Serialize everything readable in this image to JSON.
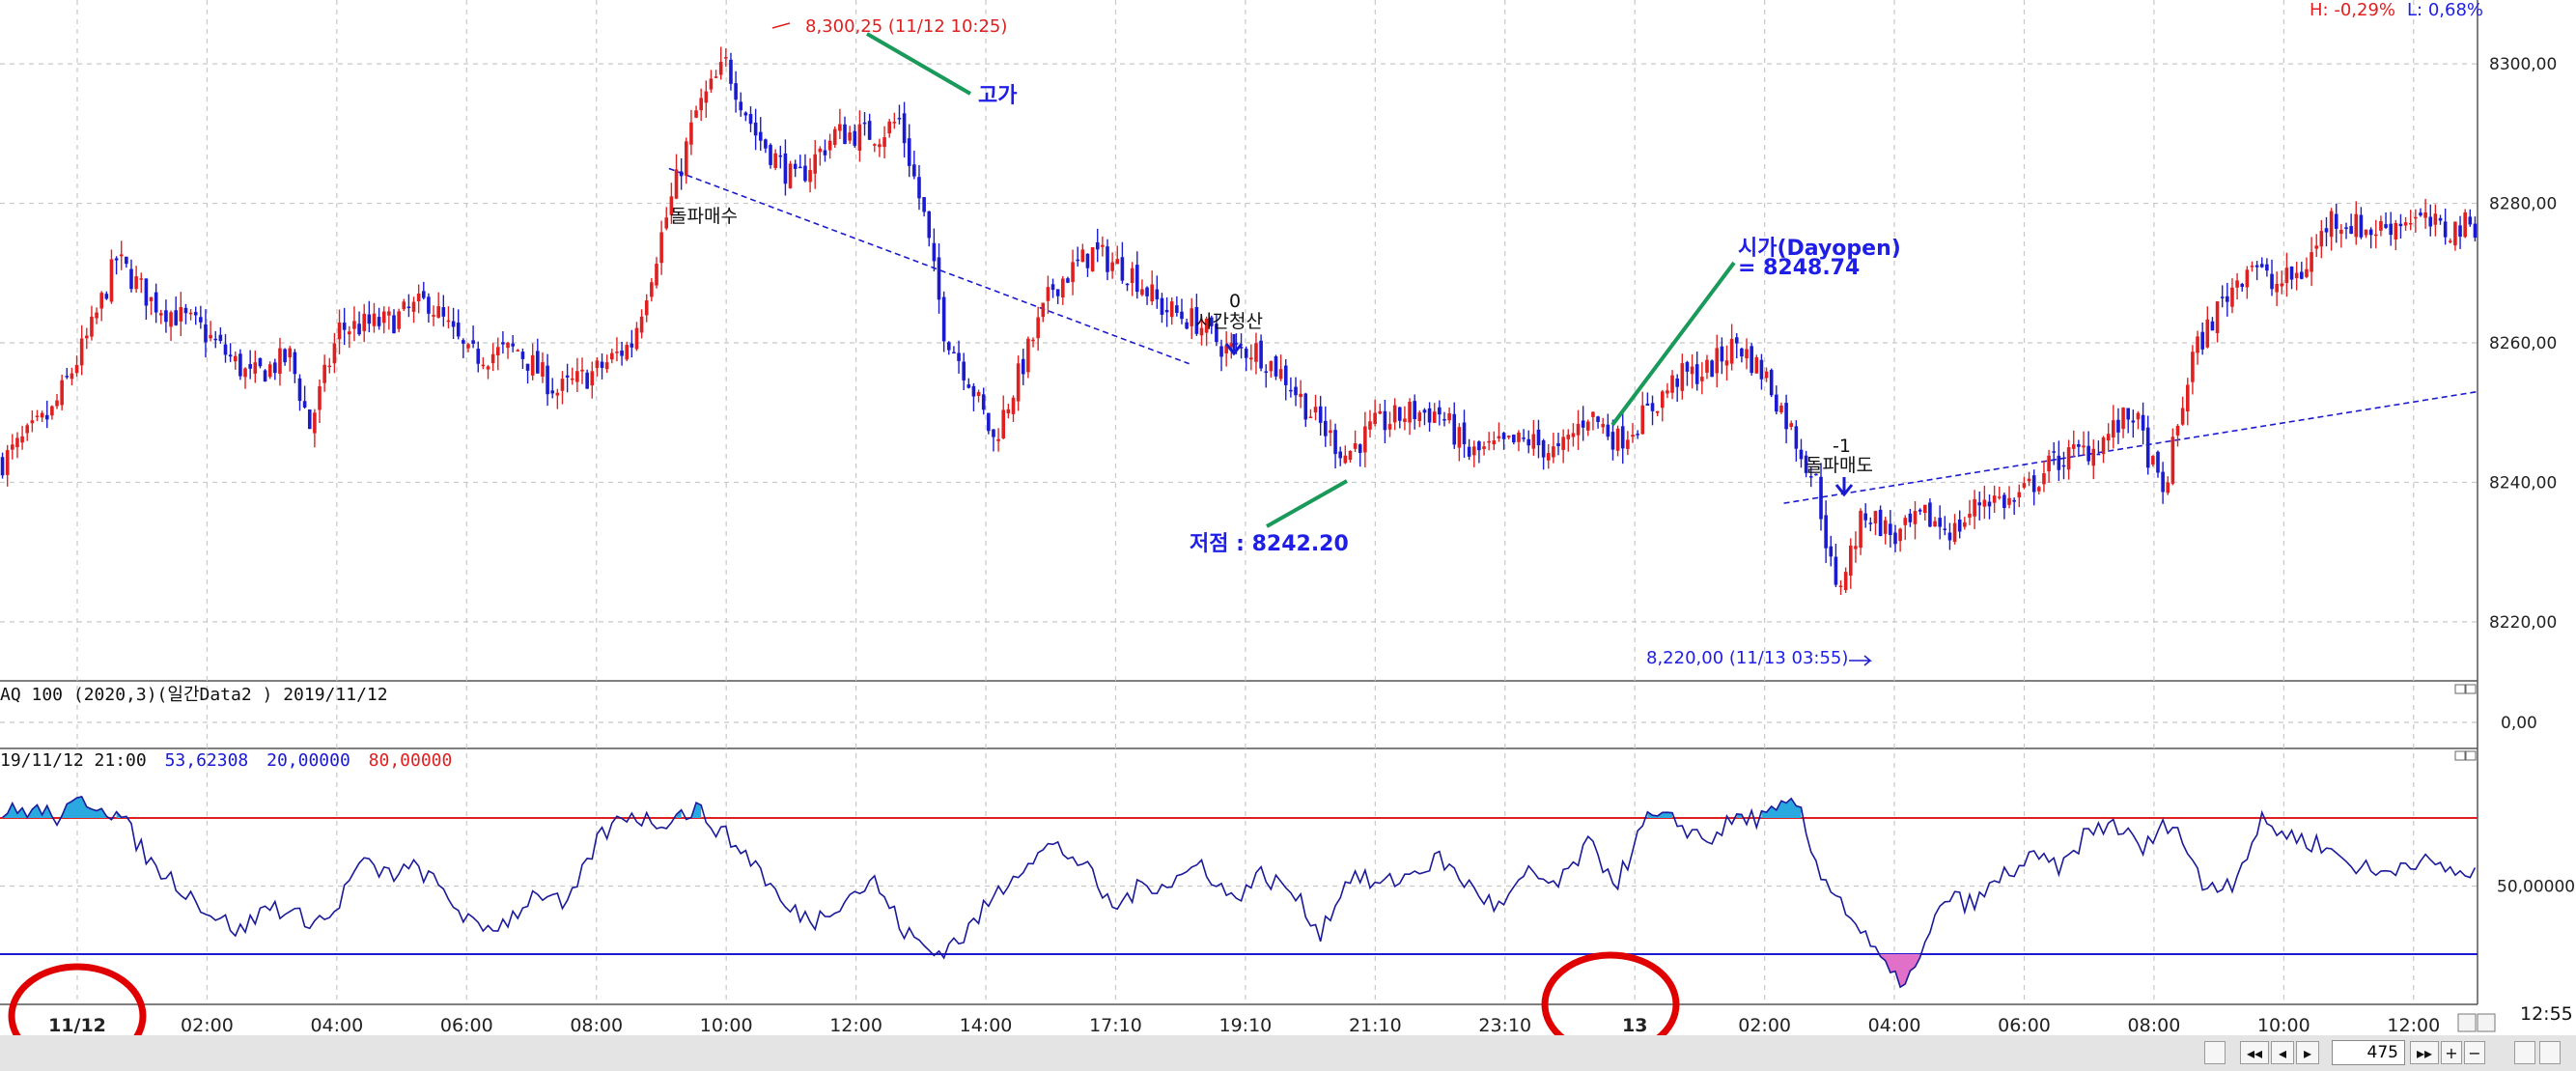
{
  "chart_data": [
    {
      "type": "candlestick",
      "name": "price-pane",
      "y_ticks": [
        "8300,00",
        "8280,00",
        "8260,00",
        "8240,00",
        "8220,00"
      ],
      "ylim": [
        8215,
        8305
      ],
      "hl_readout": {
        "high": "H: -0,29%",
        "low": "L: 0,68%"
      },
      "high_mark": {
        "label": "8,300,25 (11/12 10:25)",
        "value": 8300.25
      },
      "low_mark": {
        "label": "8,220,00 (11/13 03:55)",
        "value": 8220.0
      },
      "annotations": {
        "high_word": "고가",
        "low_word": "저점 : 8242.20",
        "open_word": "시가(Dayopen)",
        "open_value": "= 8248.74",
        "buy_signal": "돌파매수",
        "exit_count": "0",
        "exit_signal": "시간청산",
        "sell_count": "-1",
        "sell_signal": "돌파매도"
      },
      "trendline_1": {
        "from": [
          8285,
          0.27
        ],
        "to": [
          8257,
          0.48
        ]
      },
      "trendline_2": {
        "from": [
          8237,
          0.72
        ],
        "to": [
          8253,
          1.0
        ]
      },
      "keypoints": [
        [
          0,
          8243
        ],
        [
          10,
          8250
        ],
        [
          18,
          8262
        ],
        [
          23,
          8272
        ],
        [
          30,
          8266
        ],
        [
          40,
          8262
        ],
        [
          50,
          8255
        ],
        [
          58,
          8258
        ],
        [
          62,
          8248
        ],
        [
          68,
          8262
        ],
        [
          78,
          8263
        ],
        [
          86,
          8266
        ],
        [
          94,
          8258
        ],
        [
          104,
          8259
        ],
        [
          112,
          8253
        ],
        [
          120,
          8256
        ],
        [
          127,
          8260
        ],
        [
          134,
          8278
        ],
        [
          140,
          8293
        ],
        [
          146,
          8300
        ],
        [
          152,
          8290
        ],
        [
          160,
          8283
        ],
        [
          168,
          8290
        ],
        [
          177,
          8290
        ],
        [
          181,
          8292
        ],
        [
          186,
          8278
        ],
        [
          190,
          8262
        ],
        [
          195,
          8255
        ],
        [
          200,
          8246
        ],
        [
          206,
          8257
        ],
        [
          212,
          8268
        ],
        [
          220,
          8273
        ],
        [
          228,
          8270
        ],
        [
          234,
          8265
        ],
        [
          241,
          8263
        ],
        [
          247,
          8259
        ],
        [
          253,
          8259
        ],
        [
          259,
          8255
        ],
        [
          265,
          8249
        ],
        [
          271,
          8244
        ],
        [
          277,
          8248
        ],
        [
          284,
          8250
        ],
        [
          290,
          8250
        ],
        [
          296,
          8244
        ],
        [
          302,
          8245
        ],
        [
          308,
          8246
        ],
        [
          314,
          8244
        ],
        [
          320,
          8250
        ],
        [
          326,
          8246
        ],
        [
          332,
          8250
        ],
        [
          338,
          8255
        ],
        [
          344,
          8256
        ],
        [
          350,
          8260
        ],
        [
          356,
          8255
        ],
        [
          362,
          8246
        ],
        [
          366,
          8240
        ],
        [
          370,
          8224
        ],
        [
          376,
          8236
        ],
        [
          382,
          8232
        ],
        [
          388,
          8235
        ],
        [
          394,
          8233
        ],
        [
          400,
          8238
        ],
        [
          406,
          8237
        ],
        [
          414,
          8243
        ],
        [
          422,
          8245
        ],
        [
          430,
          8250
        ],
        [
          436,
          8238
        ],
        [
          442,
          8258
        ],
        [
          448,
          8266
        ],
        [
          454,
          8272
        ],
        [
          458,
          8268
        ],
        [
          464,
          8270
        ],
        [
          470,
          8278
        ],
        [
          478,
          8276
        ],
        [
          486,
          8278
        ],
        [
          493,
          8276
        ],
        [
          498,
          8277
        ]
      ]
    },
    {
      "type": "line",
      "name": "middle-pane",
      "title": "AQ 100 (2020,3)(일간Data2 ) 2019/11/12",
      "y_ticks": [
        "0,00"
      ]
    },
    {
      "type": "line",
      "name": "oscillator-pane",
      "title_prefix": "19/11/12 21:00",
      "value_readout": "53,62308",
      "lower_level": "20,00000",
      "upper_level": "80,00000",
      "y_ticks": [
        "50,00000"
      ],
      "ylim": [
        0,
        100
      ],
      "keypoints": [
        [
          0,
          82
        ],
        [
          6,
          84
        ],
        [
          12,
          80
        ],
        [
          16,
          88
        ],
        [
          20,
          86
        ],
        [
          24,
          80
        ],
        [
          30,
          60
        ],
        [
          36,
          50
        ],
        [
          42,
          38
        ],
        [
          48,
          30
        ],
        [
          54,
          42
        ],
        [
          60,
          36
        ],
        [
          66,
          35
        ],
        [
          72,
          60
        ],
        [
          78,
          55
        ],
        [
          84,
          58
        ],
        [
          90,
          45
        ],
        [
          96,
          30
        ],
        [
          102,
          35
        ],
        [
          108,
          48
        ],
        [
          114,
          40
        ],
        [
          120,
          70
        ],
        [
          126,
          82
        ],
        [
          132,
          78
        ],
        [
          140,
          84
        ],
        [
          146,
          72
        ],
        [
          152,
          60
        ],
        [
          158,
          40
        ],
        [
          164,
          35
        ],
        [
          170,
          45
        ],
        [
          176,
          52
        ],
        [
          182,
          30
        ],
        [
          188,
          20
        ],
        [
          194,
          28
        ],
        [
          200,
          45
        ],
        [
          206,
          60
        ],
        [
          212,
          68
        ],
        [
          218,
          60
        ],
        [
          224,
          40
        ],
        [
          230,
          50
        ],
        [
          236,
          52
        ],
        [
          242,
          60
        ],
        [
          248,
          44
        ],
        [
          254,
          55
        ],
        [
          260,
          48
        ],
        [
          266,
          30
        ],
        [
          272,
          55
        ],
        [
          278,
          50
        ],
        [
          284,
          55
        ],
        [
          290,
          62
        ],
        [
          296,
          50
        ],
        [
          302,
          40
        ],
        [
          308,
          55
        ],
        [
          314,
          50
        ],
        [
          320,
          68
        ],
        [
          326,
          52
        ],
        [
          332,
          80
        ],
        [
          338,
          78
        ],
        [
          344,
          70
        ],
        [
          350,
          80
        ],
        [
          356,
          80
        ],
        [
          362,
          87
        ],
        [
          366,
          60
        ],
        [
          372,
          40
        ],
        [
          378,
          20
        ],
        [
          382,
          8
        ],
        [
          386,
          12
        ],
        [
          392,
          45
        ],
        [
          398,
          42
        ],
        [
          404,
          55
        ],
        [
          410,
          62
        ],
        [
          416,
          58
        ],
        [
          420,
          72
        ],
        [
          426,
          78
        ],
        [
          432,
          66
        ],
        [
          438,
          80
        ],
        [
          444,
          50
        ],
        [
          450,
          52
        ],
        [
          456,
          78
        ],
        [
          462,
          72
        ],
        [
          468,
          68
        ],
        [
          474,
          60
        ],
        [
          480,
          55
        ],
        [
          486,
          62
        ],
        [
          492,
          58
        ],
        [
          498,
          55
        ]
      ]
    }
  ],
  "x_ticks": [
    "11/12",
    "02:00",
    "04:00",
    "06:00",
    "08:00",
    "10:00",
    "12:00",
    "14:00",
    "17:10",
    "19:10",
    "21:10",
    "23:10",
    "13",
    "02:00",
    "04:00",
    "06:00",
    "08:00",
    "10:00",
    "12:00"
  ],
  "status": {
    "time": "12:55",
    "bar_count": "475",
    "nav_prev_page": "◂◂",
    "nav_prev": "◂",
    "nav_next": "▸",
    "nav_next_page": "▸▸",
    "zoom_in": "+",
    "zoom_out": "−"
  },
  "colors": {
    "up_candle": "#e02020",
    "down_candle": "#1a1ad0",
    "trendline": "#1a1ad0",
    "annotation_leader": "#1a9a5a",
    "oscillator_line": "#1a1a9a",
    "upper_level_line": "#e02020",
    "lower_level_line": "#1a1ad0",
    "overbought_fill": "#2aa8e0",
    "oversold_fill": "#e070c8",
    "highlight_circle": "#e00000",
    "grid": "#c8c8c8"
  }
}
